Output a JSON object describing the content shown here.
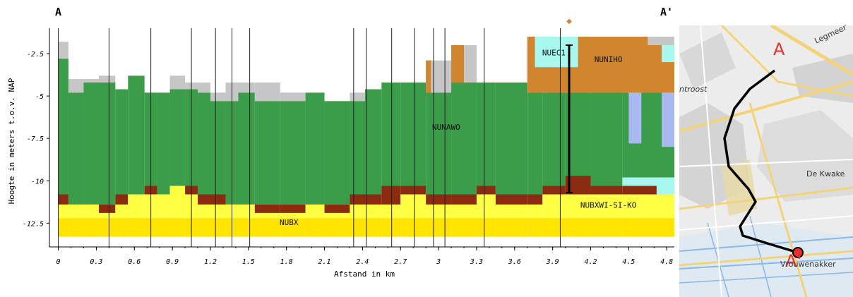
{
  "chart_data": {
    "type": "area",
    "title": "",
    "start_label": "A",
    "end_label": "A'",
    "xlabel": "Afstand in km",
    "ylabel": "Hoogte in meters t.o.v. NAP",
    "xlim": [
      -0.07,
      4.86
    ],
    "ylim": [
      -13.9,
      -1.0
    ],
    "x_ticks": [
      {
        "v": 0,
        "label": "0"
      },
      {
        "v": 0.3,
        "label": "0.3"
      },
      {
        "v": 0.6,
        "label": "0.6"
      },
      {
        "v": 0.9,
        "label": "0.9"
      },
      {
        "v": 1.2,
        "label": "1.2"
      },
      {
        "v": 1.5,
        "label": "1.5"
      },
      {
        "v": 1.8,
        "label": "1.8"
      },
      {
        "v": 2.1,
        "label": "2.1"
      },
      {
        "v": 2.4,
        "label": "2.4"
      },
      {
        "v": 2.7,
        "label": "2.7"
      },
      {
        "v": 3.0,
        "label": "3"
      },
      {
        "v": 3.3,
        "label": "3.3"
      },
      {
        "v": 3.6,
        "label": "3.6"
      },
      {
        "v": 3.9,
        "label": "3.9"
      },
      {
        "v": 4.2,
        "label": "4.2"
      },
      {
        "v": 4.5,
        "label": "4.5"
      },
      {
        "v": 4.8,
        "label": "4.8"
      }
    ],
    "y_ticks": [
      {
        "v": -2.5,
        "label": "-2.5"
      },
      {
        "v": -5,
        "label": "-5"
      },
      {
        "v": -7.5,
        "label": "-7.5"
      },
      {
        "v": -10,
        "label": "-10"
      },
      {
        "v": -12.5,
        "label": "-12.5"
      }
    ],
    "layer_colors": {
      "surface": "#c6c6c6",
      "NUNAWO": "#3b9c4a",
      "peat_base": "#8b2b12",
      "NUBXWI-SI-KO": "#ffff44",
      "NUBX": "#ffe400",
      "NUNIHO": "#d1852f",
      "NUEC1": "#a8f8f0",
      "sand_lens": "#aab8f0"
    },
    "bottom": -13.3,
    "columns": [
      {
        "x0": 0.0,
        "x1": 0.08,
        "top": -1.8,
        "green_top": -2.8,
        "brown_top": -10.8,
        "yellow_top": -11.4
      },
      {
        "x0": 0.08,
        "x1": 0.2,
        "top": -4.0,
        "green_top": -4.8,
        "brown_top": -11.4,
        "yellow_top": -11.4
      },
      {
        "x0": 0.2,
        "x1": 0.32,
        "top": -4.0,
        "green_top": -4.2,
        "brown_top": -11.4,
        "yellow_top": -11.4
      },
      {
        "x0": 0.32,
        "x1": 0.45,
        "top": -3.8,
        "green_top": -4.2,
        "brown_top": -11.4,
        "yellow_top": -11.9
      },
      {
        "x0": 0.45,
        "x1": 0.55,
        "top": -4.6,
        "green_top": -4.6,
        "brown_top": -10.8,
        "yellow_top": -11.4
      },
      {
        "x0": 0.55,
        "x1": 0.68,
        "top": -3.8,
        "green_top": -3.8,
        "brown_top": -10.8,
        "yellow_top": -10.8
      },
      {
        "x0": 0.68,
        "x1": 0.78,
        "top": -4.8,
        "green_top": -4.8,
        "brown_top": -10.3,
        "yellow_top": -10.8
      },
      {
        "x0": 0.78,
        "x1": 0.88,
        "top": -4.8,
        "green_top": -4.8,
        "brown_top": -10.8,
        "yellow_top": -10.8
      },
      {
        "x0": 0.88,
        "x1": 1.0,
        "top": -3.8,
        "green_top": -4.6,
        "brown_top": -10.3,
        "yellow_top": -10.3
      },
      {
        "x0": 1.0,
        "x1": 1.1,
        "top": -4.2,
        "green_top": -4.6,
        "brown_top": -10.3,
        "yellow_top": -10.8
      },
      {
        "x0": 1.1,
        "x1": 1.2,
        "top": -4.2,
        "green_top": -4.8,
        "brown_top": -10.8,
        "yellow_top": -11.4
      },
      {
        "x0": 1.2,
        "x1": 1.32,
        "top": -4.8,
        "green_top": -5.3,
        "brown_top": -10.8,
        "yellow_top": -11.4
      },
      {
        "x0": 1.32,
        "x1": 1.42,
        "top": -4.2,
        "green_top": -5.3,
        "brown_top": -11.4,
        "yellow_top": -11.4
      },
      {
        "x0": 1.42,
        "x1": 1.55,
        "top": -4.2,
        "green_top": -4.8,
        "brown_top": -11.4,
        "yellow_top": -11.4
      },
      {
        "x0": 1.55,
        "x1": 1.75,
        "top": -4.2,
        "green_top": -5.3,
        "brown_top": -11.4,
        "yellow_top": -11.9
      },
      {
        "x0": 1.75,
        "x1": 1.95,
        "top": -4.8,
        "green_top": -5.3,
        "brown_top": -11.4,
        "yellow_top": -11.9
      },
      {
        "x0": 1.95,
        "x1": 2.1,
        "top": -4.8,
        "green_top": -4.8,
        "brown_top": -11.4,
        "yellow_top": -11.4
      },
      {
        "x0": 2.1,
        "x1": 2.3,
        "top": -5.3,
        "green_top": -5.3,
        "brown_top": -11.4,
        "yellow_top": -11.9
      },
      {
        "x0": 2.3,
        "x1": 2.42,
        "top": -4.8,
        "green_top": -5.3,
        "brown_top": -10.8,
        "yellow_top": -11.4
      },
      {
        "x0": 2.42,
        "x1": 2.55,
        "top": -4.6,
        "green_top": -4.6,
        "brown_top": -10.8,
        "yellow_top": -11.4
      },
      {
        "x0": 2.55,
        "x1": 2.7,
        "top": -4.2,
        "green_top": -4.2,
        "brown_top": -10.3,
        "yellow_top": -11.4
      },
      {
        "x0": 2.7,
        "x1": 2.9,
        "top": -4.2,
        "green_top": -4.2,
        "brown_top": -10.3,
        "yellow_top": -10.8
      },
      {
        "x0": 2.9,
        "x1": 3.1,
        "top": -2.9,
        "green_top": -4.8,
        "brown_top": -10.8,
        "yellow_top": -11.4
      },
      {
        "x0": 3.1,
        "x1": 3.3,
        "top": -2.0,
        "green_top": -4.2,
        "brown_top": -10.8,
        "yellow_top": -11.4
      },
      {
        "x0": 3.3,
        "x1": 3.45,
        "top": -4.2,
        "green_top": -4.2,
        "brown_top": -10.3,
        "yellow_top": -10.8
      },
      {
        "x0": 3.45,
        "x1": 3.7,
        "top": -4.2,
        "green_top": -4.2,
        "brown_top": -10.8,
        "yellow_top": -11.4
      },
      {
        "x0": 3.7,
        "x1": 3.82,
        "top": -1.5,
        "green_top": -4.8,
        "brown_top": -10.8,
        "yellow_top": -11.4
      },
      {
        "x0": 3.82,
        "x1": 4.0,
        "top": -1.5,
        "green_top": -4.8,
        "brown_top": -10.3,
        "yellow_top": -10.8
      },
      {
        "x0": 4.0,
        "x1": 4.2,
        "top": -1.5,
        "green_top": -4.8,
        "brown_top": -9.7,
        "yellow_top": -10.8
      },
      {
        "x0": 4.2,
        "x1": 4.45,
        "top": -1.5,
        "green_top": -4.8,
        "brown_top": -10.3,
        "yellow_top": -10.8
      },
      {
        "x0": 4.45,
        "x1": 4.86,
        "top": -1.5,
        "green_top": -4.8,
        "brown_top": -10.3,
        "yellow_top": -10.8
      }
    ],
    "top_layer_blocks": [
      {
        "x0": 2.9,
        "x1": 2.94,
        "y_top": -2.9,
        "y_bottom": -4.8,
        "layer": "NUNIHO"
      },
      {
        "x0": 3.1,
        "x1": 3.2,
        "y_top": -2.0,
        "y_bottom": -4.2,
        "layer": "NUNIHO"
      },
      {
        "x0": 3.7,
        "x1": 4.86,
        "y_top": -1.5,
        "y_bottom": -4.8,
        "layer": "NUNIHO"
      },
      {
        "x0": 3.76,
        "x1": 4.1,
        "y_top": -1.5,
        "y_bottom": -3.3,
        "layer": "NUEC1"
      },
      {
        "x0": 4.65,
        "x1": 4.86,
        "y_top": -1.5,
        "y_bottom": -2.0,
        "layer": "surface"
      },
      {
        "x0": 4.76,
        "x1": 4.86,
        "y_top": -2.0,
        "y_bottom": -3.0,
        "layer": "NUEC1"
      },
      {
        "x0": 4.5,
        "x1": 4.6,
        "y_top": -4.8,
        "y_bottom": -7.8,
        "layer": "sand_lens"
      },
      {
        "x0": 4.76,
        "x1": 4.86,
        "y_top": -4.8,
        "y_bottom": -8.0,
        "layer": "sand_lens"
      },
      {
        "x0": 4.45,
        "x1": 4.86,
        "y_top": -9.8,
        "y_bottom": -10.8,
        "layer": "NUEC1"
      },
      {
        "x0": 4.45,
        "x1": 4.72,
        "y_top": -10.3,
        "y_bottom": -10.8,
        "layer": "peat_base"
      }
    ],
    "bore_lines": [
      0.0,
      0.4,
      0.73,
      1.05,
      1.24,
      1.37,
      1.51,
      2.33,
      2.43,
      2.63,
      2.81,
      2.96,
      3.05,
      3.36,
      3.96
    ],
    "selected_bore": {
      "x": 4.03,
      "y_top": -2.0,
      "y_bottom": -10.7,
      "marker_label": "◆"
    },
    "layer_labels": [
      {
        "text": "NUNAWO",
        "x": 3.06,
        "y": -7.0
      },
      {
        "text": "NUBXWI-SI-KO",
        "x": 4.34,
        "y": -11.6
      },
      {
        "text": "NUBX",
        "x": 1.82,
        "y": -12.6
      },
      {
        "text": "NUNIHO",
        "x": 4.34,
        "y": -3.0
      },
      {
        "text": "NUEC1",
        "x": 3.91,
        "y": -2.6
      }
    ]
  },
  "map": {
    "start_marker": "A",
    "end_marker": "A'",
    "labels": [
      "Legmeer",
      "ntroost",
      "De Kwake",
      "Vrouwenakker"
    ],
    "route_color": "#000000",
    "marker_color": "#e8302a"
  }
}
